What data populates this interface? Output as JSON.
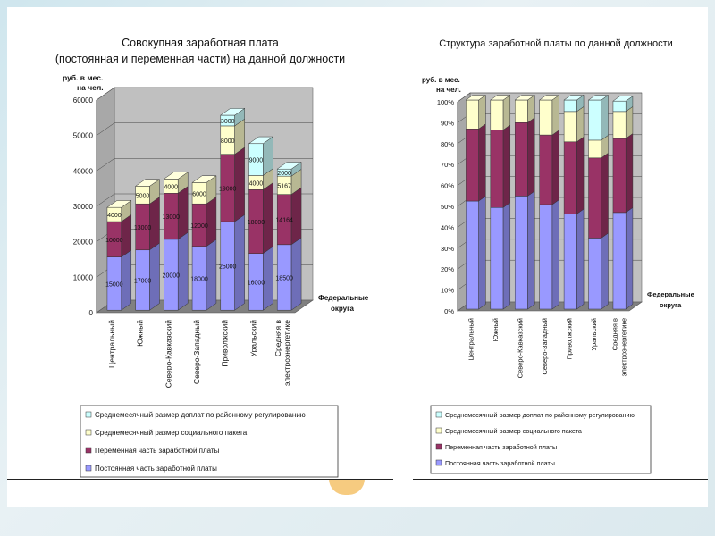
{
  "left_chart": {
    "title_line1": "Совокупная заработная плата",
    "title_line2": "(постоянная и переменная части) на данной должности",
    "ylabel_line1": "руб. в мес.",
    "ylabel_line2": "на чел.",
    "xaxis_label_line1": "Федеральные",
    "xaxis_label_line2": "округа",
    "legend": [
      "Среднемесячный размер доплат по районному регулированию",
      "Среднемесячный размер социального пакета",
      "Переменная часть заработной платы",
      "Постоянная часть заработной платы"
    ]
  },
  "right_chart": {
    "title": "Структура заработной платы по данной должности",
    "ylabel_line1": "руб. в мес.",
    "ylabel_line2": "на чел.",
    "xaxis_label_line1": "Федеральные",
    "xaxis_label_line2": "округа",
    "legend": [
      "Среднемесячный размер доплат по районному регулированию",
      "Среднемесячный размер социального пакета",
      "Переменная часть заработной платы",
      "Постоянная часть заработной платы"
    ]
  },
  "colors": {
    "constant": "#9999ff",
    "variable": "#993366",
    "social": "#ffffcc",
    "regional": "#ccffff",
    "wall": "#c0c0c0",
    "floor": "#808080"
  },
  "chart_data": [
    {
      "type": "bar",
      "stacked": true,
      "title": "Совокупная заработная плата (постоянная и переменная части) на данной должности",
      "ylabel": "руб. в мес. на чел.",
      "xlabel": "Федеральные округа",
      "ylim": [
        0,
        60000
      ],
      "yticks": [
        0,
        10000,
        20000,
        30000,
        40000,
        50000,
        60000
      ],
      "categories": [
        "Центральный",
        "Южный",
        "Северо-Кавказский",
        "Северо-Западный",
        "Приволжский",
        "Уральский",
        "Средняя в электроэнергетике"
      ],
      "series": [
        {
          "name": "Постоянная часть заработной платы",
          "values": [
            15000,
            17000,
            20000,
            18000,
            25000,
            16000,
            18500
          ]
        },
        {
          "name": "Переменная часть заработной платы",
          "values": [
            10000,
            13000,
            13000,
            12000,
            19000,
            18000,
            14164
          ]
        },
        {
          "name": "Среднемесячный размер социального пакета",
          "values": [
            4000,
            5000,
            4000,
            6000,
            8000,
            4000,
            5167
          ]
        },
        {
          "name": "Среднемесячный размер доплат по районному регулированию",
          "values": [
            0,
            0,
            0,
            0,
            3000,
            9000,
            2000
          ]
        }
      ],
      "data_labels": [
        [
          "15000",
          "17000",
          "20000",
          "18000",
          "25000",
          "16000",
          "18500"
        ],
        [
          "10000",
          "13000",
          "13000",
          "12000",
          "19000",
          "18000",
          "14164"
        ],
        [
          "4000",
          "5000",
          "4000",
          "6000",
          "8000",
          "4000",
          "5167"
        ],
        [
          "",
          "",
          "",
          "",
          "3000",
          "9000",
          "2000"
        ]
      ],
      "grid": true,
      "legend_position": "bottom"
    },
    {
      "type": "bar",
      "stacked": true,
      "percent": true,
      "title": "Структура заработной платы по данной должности",
      "ylabel": "руб. в мес. на чел.",
      "xlabel": "Федеральные округа",
      "ylim": [
        0,
        100
      ],
      "yticks": [
        "0%",
        "10%",
        "20%",
        "30%",
        "40%",
        "50%",
        "60%",
        "70%",
        "80%",
        "90%",
        "100%"
      ],
      "categories": [
        "Центральный",
        "Южный",
        "Северо-Кавказский",
        "Северо-Западный",
        "Приволжский",
        "Уральский",
        "Средняя в электроэнергетике"
      ],
      "series": [
        {
          "name": "Постоянная часть заработной платы",
          "values": [
            51.7,
            48.6,
            54.1,
            50.0,
            45.5,
            34.0,
            46.2
          ]
        },
        {
          "name": "Переменная часть заработной платы",
          "values": [
            34.5,
            37.1,
            35.1,
            33.3,
            34.5,
            38.3,
            35.4
          ]
        },
        {
          "name": "Среднемесячный размер социального пакета",
          "values": [
            13.8,
            14.3,
            10.8,
            16.7,
            14.5,
            8.5,
            12.9
          ]
        },
        {
          "name": "Среднемесячный размер доплат по районному регулированию",
          "values": [
            0,
            0,
            0,
            0,
            5.5,
            19.2,
            5.0
          ]
        }
      ],
      "grid": true,
      "legend_position": "bottom"
    }
  ]
}
